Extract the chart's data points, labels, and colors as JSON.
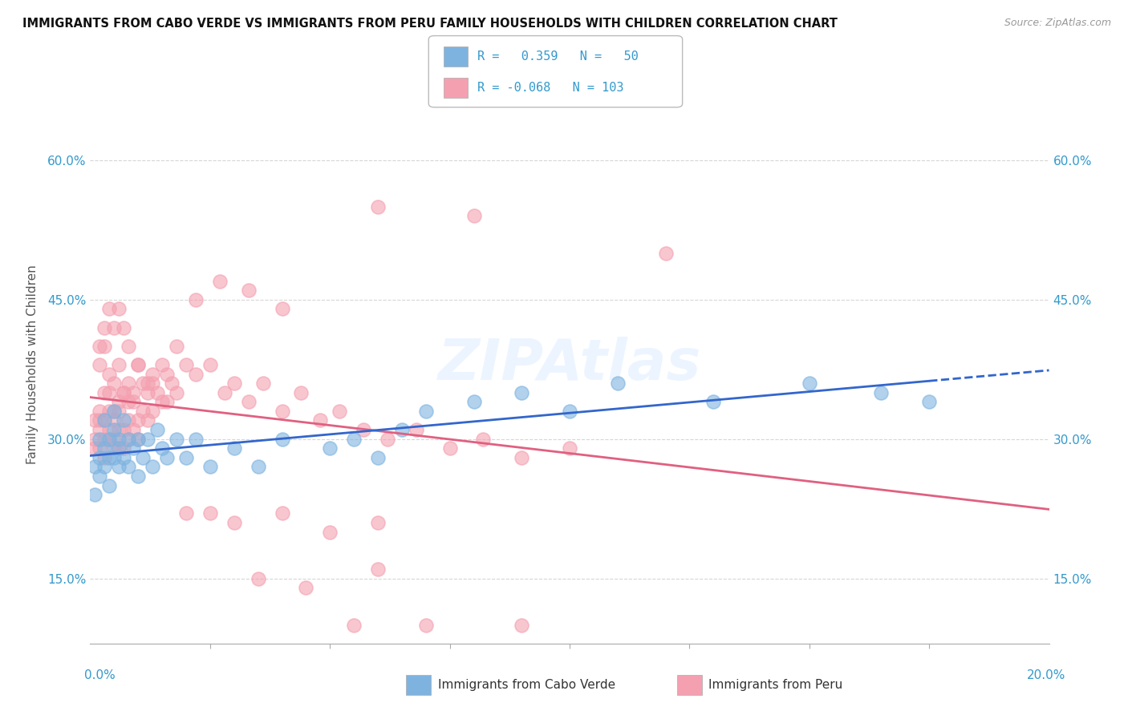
{
  "title": "IMMIGRANTS FROM CABO VERDE VS IMMIGRANTS FROM PERU FAMILY HOUSEHOLDS WITH CHILDREN CORRELATION CHART",
  "source": "Source: ZipAtlas.com",
  "ylabel": "Family Households with Children",
  "y_ticks": [
    0.15,
    0.3,
    0.45,
    0.6
  ],
  "y_tick_labels": [
    "15.0%",
    "30.0%",
    "45.0%",
    "60.0%"
  ],
  "xlim": [
    0.0,
    0.2
  ],
  "ylim": [
    0.08,
    0.68
  ],
  "watermark": "ZIPAtlas",
  "cabo_verde_color": "#7eb3e0",
  "peru_color": "#f4a0b0",
  "cabo_verde_line_color": "#3366cc",
  "peru_line_color": "#e06080",
  "cabo_verde_x": [
    0.001,
    0.001,
    0.002,
    0.002,
    0.002,
    0.003,
    0.003,
    0.003,
    0.004,
    0.004,
    0.004,
    0.005,
    0.005,
    0.005,
    0.006,
    0.006,
    0.006,
    0.007,
    0.007,
    0.008,
    0.008,
    0.009,
    0.01,
    0.01,
    0.011,
    0.012,
    0.013,
    0.014,
    0.015,
    0.016,
    0.018,
    0.02,
    0.022,
    0.025,
    0.03,
    0.035,
    0.04,
    0.05,
    0.055,
    0.06,
    0.065,
    0.07,
    0.08,
    0.09,
    0.1,
    0.11,
    0.13,
    0.15,
    0.165,
    0.175
  ],
  "cabo_verde_y": [
    0.27,
    0.24,
    0.28,
    0.3,
    0.26,
    0.29,
    0.32,
    0.27,
    0.3,
    0.28,
    0.25,
    0.31,
    0.28,
    0.33,
    0.3,
    0.27,
    0.29,
    0.28,
    0.32,
    0.3,
    0.27,
    0.29,
    0.3,
    0.26,
    0.28,
    0.3,
    0.27,
    0.31,
    0.29,
    0.28,
    0.3,
    0.28,
    0.3,
    0.27,
    0.29,
    0.27,
    0.3,
    0.29,
    0.3,
    0.28,
    0.31,
    0.33,
    0.34,
    0.35,
    0.33,
    0.36,
    0.34,
    0.36,
    0.35,
    0.34
  ],
  "peru_x": [
    0.001,
    0.001,
    0.001,
    0.002,
    0.002,
    0.002,
    0.002,
    0.003,
    0.003,
    0.003,
    0.003,
    0.004,
    0.004,
    0.004,
    0.004,
    0.005,
    0.005,
    0.005,
    0.005,
    0.006,
    0.006,
    0.006,
    0.006,
    0.007,
    0.007,
    0.007,
    0.008,
    0.008,
    0.008,
    0.009,
    0.009,
    0.01,
    0.01,
    0.011,
    0.011,
    0.012,
    0.012,
    0.013,
    0.013,
    0.014,
    0.015,
    0.016,
    0.017,
    0.018,
    0.02,
    0.022,
    0.025,
    0.028,
    0.03,
    0.033,
    0.036,
    0.04,
    0.044,
    0.048,
    0.052,
    0.057,
    0.062,
    0.068,
    0.075,
    0.082,
    0.09,
    0.1,
    0.002,
    0.003,
    0.004,
    0.005,
    0.006,
    0.007,
    0.008,
    0.009,
    0.01,
    0.012,
    0.015,
    0.018,
    0.022,
    0.027,
    0.033,
    0.04,
    0.05,
    0.06,
    0.002,
    0.003,
    0.004,
    0.005,
    0.006,
    0.007,
    0.008,
    0.01,
    0.013,
    0.016,
    0.02,
    0.025,
    0.03,
    0.04,
    0.055,
    0.07,
    0.09,
    0.06,
    0.08,
    0.12,
    0.035,
    0.045,
    0.06
  ],
  "peru_y": [
    0.3,
    0.32,
    0.29,
    0.31,
    0.33,
    0.29,
    0.32,
    0.3,
    0.32,
    0.35,
    0.28,
    0.31,
    0.33,
    0.3,
    0.35,
    0.3,
    0.32,
    0.29,
    0.33,
    0.31,
    0.34,
    0.29,
    0.33,
    0.31,
    0.35,
    0.29,
    0.3,
    0.34,
    0.32,
    0.31,
    0.35,
    0.32,
    0.3,
    0.33,
    0.36,
    0.32,
    0.35,
    0.33,
    0.37,
    0.35,
    0.38,
    0.37,
    0.36,
    0.4,
    0.38,
    0.37,
    0.38,
    0.35,
    0.36,
    0.34,
    0.36,
    0.33,
    0.35,
    0.32,
    0.33,
    0.31,
    0.3,
    0.31,
    0.29,
    0.3,
    0.28,
    0.29,
    0.38,
    0.4,
    0.37,
    0.36,
    0.38,
    0.35,
    0.36,
    0.34,
    0.38,
    0.36,
    0.34,
    0.35,
    0.45,
    0.47,
    0.46,
    0.44,
    0.2,
    0.21,
    0.4,
    0.42,
    0.44,
    0.42,
    0.44,
    0.42,
    0.4,
    0.38,
    0.36,
    0.34,
    0.22,
    0.22,
    0.21,
    0.22,
    0.1,
    0.1,
    0.1,
    0.55,
    0.54,
    0.5,
    0.15,
    0.14,
    0.16
  ]
}
